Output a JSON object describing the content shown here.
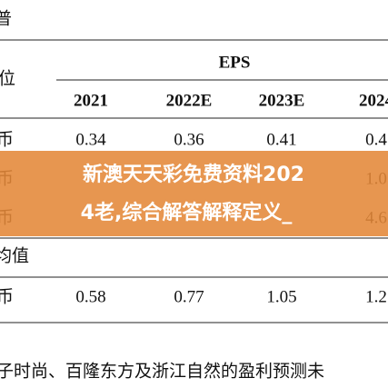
{
  "header": {
    "top_label": "普",
    "group": "EPS",
    "unit_label": "位"
  },
  "table": {
    "columns": [
      "2021",
      "2022E",
      "2023E",
      "2024"
    ],
    "rows": [
      [
        "币",
        "0.34",
        "0.36",
        "0.41",
        "0.4"
      ],
      [
        "币",
        "",
        "",
        "",
        "1.0"
      ],
      [
        "币",
        "",
        "",
        "",
        "4.6"
      ],
      [
        "均值",
        "",
        "",
        "",
        ""
      ],
      [
        "币",
        "0.58",
        "0.77",
        "1.05",
        "1.2"
      ]
    ]
  },
  "footnote": "子时尚、百隆东方及浙江自然的盈利预测未",
  "banner": {
    "lines": [
      "新澳天天彩免费资料202",
      "4老,综合解答解释定义_"
    ]
  }
}
